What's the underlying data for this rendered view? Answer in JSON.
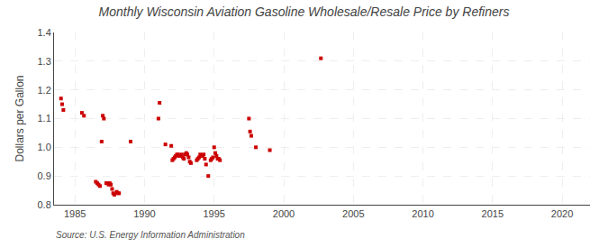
{
  "chart_data": {
    "type": "scatter",
    "title": "Monthly Wisconsin Aviation Gasoline Wholesale/Resale Price by Refiners",
    "ylabel": "Dollars per Gallon",
    "annotations": [
      "Source: U.S. Energy Information Administration"
    ],
    "x": [
      1984.0,
      1984.08,
      1984.17,
      1985.5,
      1985.65,
      1986.5,
      1986.6,
      1986.7,
      1986.8,
      1986.92,
      1987.0,
      1987.08,
      1987.25,
      1987.33,
      1987.42,
      1987.5,
      1987.58,
      1987.67,
      1987.75,
      1987.83,
      1988.0,
      1988.08,
      1988.17,
      1989.0,
      1991.0,
      1991.08,
      1991.5,
      1991.92,
      1992.0,
      1992.08,
      1992.17,
      1992.25,
      1992.33,
      1992.42,
      1992.5,
      1992.58,
      1992.67,
      1992.75,
      1992.83,
      1992.92,
      1993.0,
      1993.08,
      1993.17,
      1993.25,
      1993.33,
      1993.75,
      1993.83,
      1993.92,
      1994.0,
      1994.08,
      1994.17,
      1994.25,
      1994.33,
      1994.42,
      1994.58,
      1994.75,
      1994.83,
      1994.92,
      1995.0,
      1995.08,
      1995.17,
      1995.25,
      1995.33,
      1995.42,
      1997.5,
      1997.58,
      1997.67,
      1998.0,
      1999.0,
      2002.67
    ],
    "values": [
      1.17,
      1.15,
      1.13,
      1.12,
      1.11,
      0.88,
      0.875,
      0.87,
      0.865,
      1.02,
      1.11,
      1.1,
      0.875,
      0.875,
      0.87,
      0.875,
      0.87,
      0.855,
      0.84,
      0.835,
      0.845,
      0.84,
      0.84,
      1.02,
      1.1,
      1.155,
      1.01,
      1.005,
      0.955,
      0.96,
      0.965,
      0.97,
      0.975,
      0.975,
      0.97,
      0.97,
      0.975,
      0.965,
      0.96,
      0.975,
      0.98,
      0.975,
      0.965,
      0.95,
      0.945,
      0.955,
      0.96,
      0.965,
      0.975,
      0.97,
      0.97,
      0.975,
      0.96,
      0.94,
      0.9,
      0.955,
      0.96,
      0.965,
      1.0,
      0.98,
      0.97,
      0.96,
      0.96,
      0.955,
      1.1,
      1.055,
      1.04,
      1.0,
      0.99,
      1.31
    ],
    "color": "#cc0000",
    "marker": "square",
    "xlim": [
      1983.5,
      2022
    ],
    "ylim": [
      0.8,
      1.4
    ],
    "xticks": [
      1985,
      1990,
      1995,
      2000,
      2005,
      2010,
      2015,
      2020
    ],
    "yticks": [
      0.8,
      0.9,
      {
        "value": 1,
        "label": "1.0"
      },
      1.1,
      1.2,
      1.3,
      1.4
    ],
    "grid": true
  }
}
